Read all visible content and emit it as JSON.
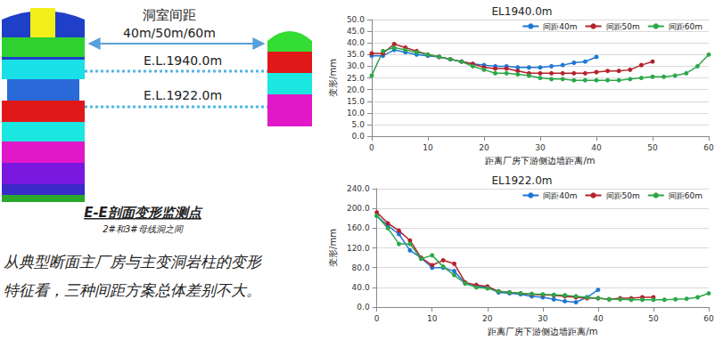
{
  "diagram": {
    "spacing_title": "洞室间距",
    "spacing_values": "40m/50m/60m",
    "elevation_upper": "E.L.1940.0m",
    "elevation_lower": "E.L.1922.0m",
    "section_title": "E-E剖面变形监测点",
    "section_subtitle": "2#和3#母线洞之间",
    "caption": [
      "从典型断面主厂房与主变洞岩柱的变形",
      "特征看，三种间距方案总体差别不大。"
    ]
  },
  "chart_data": [
    {
      "type": "line",
      "title": "EL1940.0m",
      "x_label": "距离厂房下游侧边墙距离/m",
      "y_label": "变形/mm",
      "xlim": [
        0,
        60
      ],
      "xticks": [
        0,
        10,
        20,
        30,
        40,
        50,
        60
      ],
      "ylim": [
        0,
        50
      ],
      "yticks": [
        {
          "value": 0,
          "label": "0.0"
        },
        {
          "value": 5,
          "label": "5.0"
        },
        {
          "value": 10,
          "label": "10.0"
        },
        {
          "value": 15,
          "label": "15.0"
        },
        {
          "value": 20,
          "label": "20.0"
        },
        {
          "value": 25,
          "label": "25.0"
        },
        {
          "value": 30,
          "label": "30.0"
        },
        {
          "value": 35,
          "label": "35.0"
        },
        {
          "value": 40,
          "label": "40.0"
        },
        {
          "value": 45,
          "label": "45.0"
        },
        {
          "value": 50,
          "label": "50.0"
        }
      ],
      "grid": true,
      "legend": "top",
      "marker": "circle",
      "line_style": "solid",
      "series": [
        {
          "name": "间距40m",
          "color": "#1f77d4",
          "x": [
            0,
            2,
            4,
            6,
            8,
            10,
            12,
            14,
            16,
            18,
            20,
            22,
            24,
            26,
            28,
            30,
            32,
            34,
            36,
            38,
            40
          ],
          "values": [
            34.5,
            34.5,
            37,
            36,
            35,
            34.5,
            34,
            33,
            32,
            31,
            30.5,
            30,
            30,
            29.5,
            29.5,
            29.5,
            30,
            30.5,
            31.5,
            32,
            34
          ]
        },
        {
          "name": "间距50m",
          "color": "#b5222a",
          "x": [
            0,
            2,
            4,
            6,
            8,
            10,
            12,
            14,
            16,
            18,
            20,
            22,
            24,
            26,
            28,
            30,
            32,
            34,
            36,
            38,
            40,
            42,
            44,
            46,
            48,
            50
          ],
          "values": [
            35.5,
            35.5,
            39.5,
            38,
            36.5,
            35,
            34,
            33,
            32,
            31,
            29.5,
            29,
            29,
            28,
            27,
            27,
            27,
            27,
            27,
            27,
            27.5,
            28,
            28,
            28.5,
            30.5,
            32
          ]
        },
        {
          "name": "间距60m",
          "color": "#2ca84a",
          "x": [
            0,
            2,
            4,
            6,
            8,
            10,
            12,
            14,
            16,
            18,
            20,
            22,
            24,
            26,
            28,
            30,
            32,
            34,
            36,
            38,
            40,
            42,
            44,
            46,
            48,
            50,
            52,
            54,
            56,
            58,
            60
          ],
          "values": [
            26,
            36.5,
            38,
            37,
            36,
            35,
            34,
            33,
            32,
            30,
            28.5,
            27,
            27,
            26.5,
            26,
            25,
            24.5,
            24.5,
            24,
            24,
            24,
            24,
            24,
            24.5,
            25,
            25.5,
            25.5,
            26,
            27,
            30,
            35
          ]
        }
      ]
    },
    {
      "type": "line",
      "title": "EL1922.0m",
      "x_label": "距离厂房下游侧边墙距离/m",
      "y_label": "变形/mm",
      "xlim": [
        0,
        60
      ],
      "xticks": [
        0,
        10,
        20,
        30,
        40,
        50,
        60
      ],
      "ylim": [
        0,
        240
      ],
      "yticks": [
        {
          "value": 0,
          "label": "0.0"
        },
        {
          "value": 40,
          "label": "40.0"
        },
        {
          "value": 80,
          "label": "80.0"
        },
        {
          "value": 120,
          "label": "120.0"
        },
        {
          "value": 160,
          "label": "160.0"
        },
        {
          "value": 200,
          "label": "200.0"
        },
        {
          "value": 240,
          "label": "240.0"
        }
      ],
      "grid": true,
      "legend": "top",
      "marker": "circle",
      "line_style": "solid",
      "series": [
        {
          "name": "间距40m",
          "color": "#1f77d4",
          "x": [
            0,
            2,
            4,
            6,
            8,
            10,
            12,
            14,
            16,
            18,
            20,
            22,
            24,
            26,
            28,
            30,
            32,
            34,
            36,
            38,
            40
          ],
          "values": [
            185,
            165,
            148,
            115,
            100,
            80,
            80,
            73,
            48,
            42,
            40,
            30,
            28,
            26,
            22,
            20,
            16,
            12,
            10,
            20,
            35
          ]
        },
        {
          "name": "间距50m",
          "color": "#b5222a",
          "x": [
            0,
            2,
            4,
            6,
            8,
            10,
            12,
            14,
            16,
            18,
            20,
            22,
            24,
            26,
            28,
            30,
            32,
            34,
            36,
            38,
            40,
            42,
            44,
            46,
            48,
            50
          ],
          "values": [
            192,
            170,
            155,
            135,
            100,
            85,
            95,
            88,
            50,
            45,
            42,
            32,
            30,
            28,
            26,
            25,
            24,
            22,
            20,
            18,
            18,
            16,
            18,
            18,
            20,
            20
          ]
        },
        {
          "name": "间距60m",
          "color": "#2ca84a",
          "x": [
            0,
            2,
            4,
            6,
            8,
            10,
            12,
            14,
            16,
            18,
            20,
            22,
            24,
            26,
            28,
            30,
            32,
            34,
            36,
            38,
            40,
            42,
            44,
            46,
            48,
            50,
            52,
            54,
            56,
            58,
            60
          ],
          "values": [
            185,
            160,
            128,
            128,
            98,
            105,
            82,
            65,
            48,
            40,
            38,
            32,
            30,
            28,
            27,
            26,
            25,
            24,
            22,
            20,
            18,
            16,
            16,
            15,
            15,
            15,
            15,
            16,
            17,
            20,
            28
          ]
        }
      ]
    }
  ]
}
